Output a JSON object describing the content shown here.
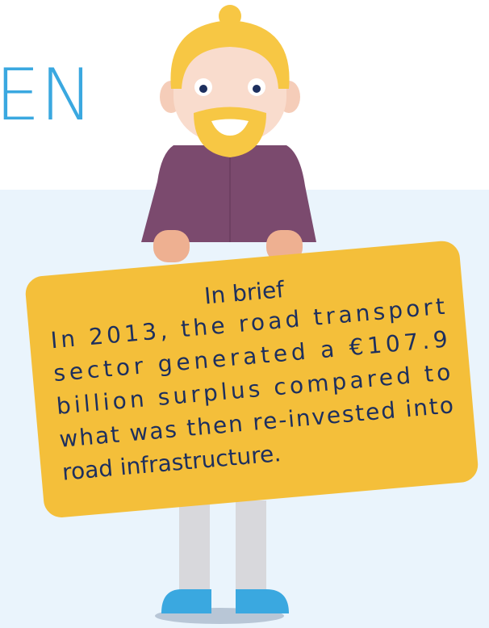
{
  "header": {
    "title_fragment": "EN"
  },
  "sign": {
    "title": "In brief",
    "lines": [
      "In 2013, the road transport",
      "sector generated a €107.9",
      "billion surplus compared to",
      "what was then re-invested into",
      "road infrastructure."
    ]
  }
}
